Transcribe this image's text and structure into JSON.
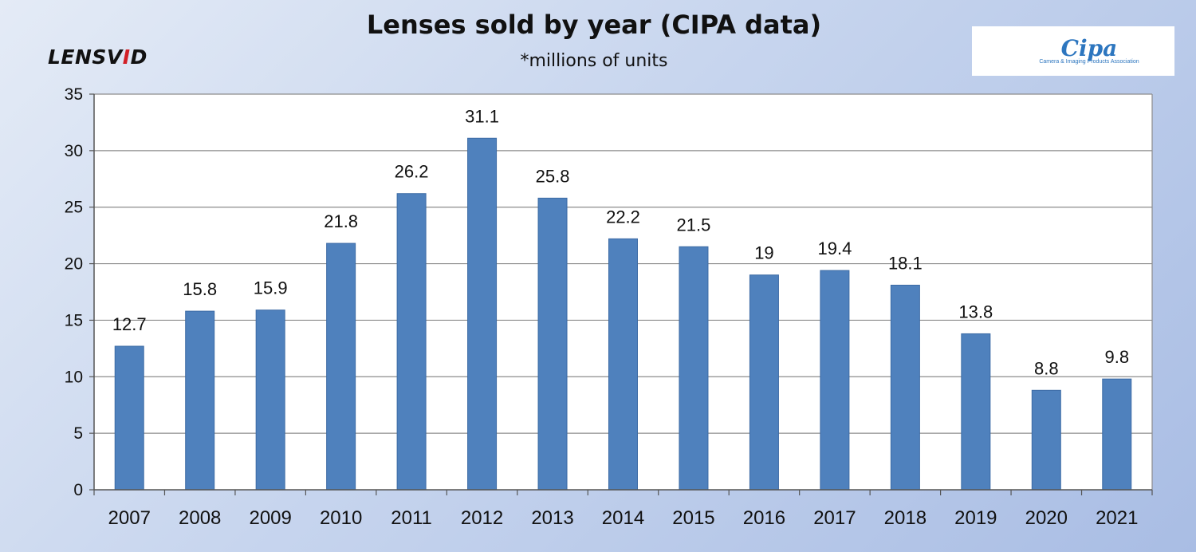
{
  "header": {
    "title": "Lenses sold by year (CIPA data)",
    "subtitle": "*millions of units",
    "brand_logo": {
      "part1": "LENSV",
      "part2": "I",
      "part3": "D"
    },
    "org_logo": {
      "mark": "Cipa",
      "text": "Camera & Imaging Products Association"
    }
  },
  "colors": {
    "bar": "#4f81bd",
    "bar_edge": "#3c6ba5",
    "grid": "#8c8c8c",
    "plot_bg": "#ffffff"
  },
  "chart_data": {
    "type": "bar",
    "title": "Lenses sold by year (CIPA data)",
    "subtitle": "*millions of units",
    "xlabel": "",
    "ylabel": "",
    "categories": [
      "2007",
      "2008",
      "2009",
      "2010",
      "2011",
      "2012",
      "2013",
      "2014",
      "2015",
      "2016",
      "2017",
      "2018",
      "2019",
      "2020",
      "2021"
    ],
    "values": [
      12.7,
      15.8,
      15.9,
      21.8,
      26.2,
      31.1,
      25.8,
      22.2,
      21.5,
      19,
      19.4,
      18.1,
      13.8,
      8.8,
      9.8
    ],
    "ylim": [
      0,
      35
    ],
    "yticks": [
      0,
      5,
      10,
      15,
      20,
      25,
      30,
      35
    ],
    "grid": true,
    "legend": "none",
    "data_labels": true
  }
}
